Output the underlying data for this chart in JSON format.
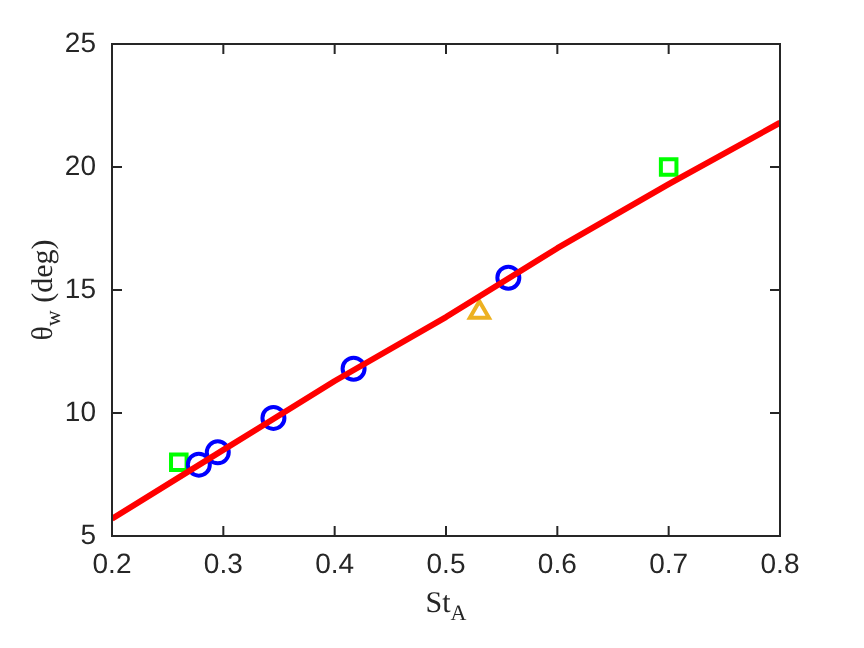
{
  "chart_data": {
    "type": "scatter",
    "xlabel": "St$_{A}$",
    "ylabel": "θ$_{w}$ (deg)",
    "xlim": [
      0.2,
      0.8
    ],
    "xticks": [
      0.2,
      0.3,
      0.4,
      0.5,
      0.6,
      0.7,
      0.8
    ],
    "ylim": [
      5,
      25
    ],
    "yticks": [
      5,
      10,
      15,
      20,
      25
    ],
    "legend": false,
    "series": [
      {
        "type": "line",
        "color": "#ff0000",
        "marker": "none",
        "line_style": "solid",
        "x": [
          0.2,
          0.3,
          0.4,
          0.5,
          0.6,
          0.7,
          0.8
        ],
        "values": [
          5.7,
          8.5,
          11.3,
          13.9,
          16.7,
          19.3,
          21.8
        ]
      },
      {
        "color": "#0000ff",
        "marker": "circle",
        "x": [
          0.278,
          0.295,
          0.345,
          0.417,
          0.556
        ],
        "values": [
          7.9,
          8.4,
          9.8,
          11.8,
          15.5
        ]
      },
      {
        "color": "#00ff00",
        "marker": "square",
        "x": [
          0.26,
          0.7
        ],
        "values": [
          8.0,
          20.0
        ]
      },
      {
        "color": "#edb120",
        "marker": "triangle",
        "x": [
          0.53
        ],
        "values": [
          14.1
        ]
      }
    ]
  }
}
